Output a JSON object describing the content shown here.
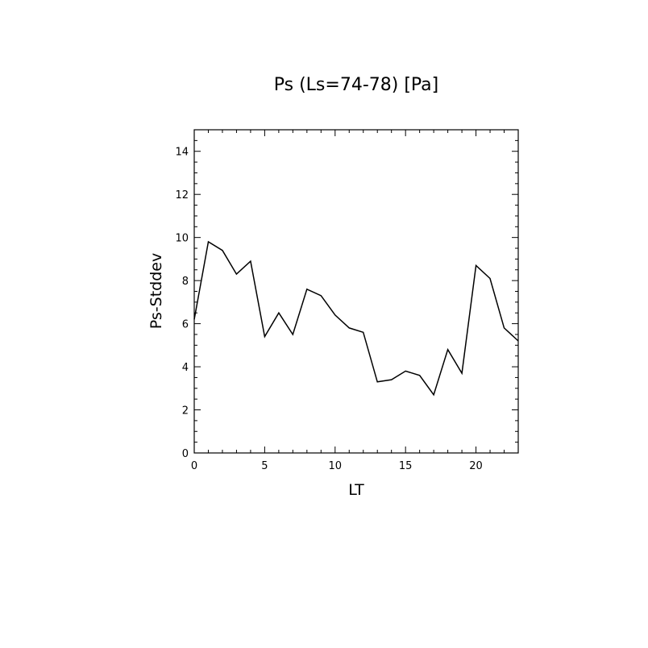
{
  "chart_data": {
    "type": "line",
    "title": "Ps (Ls=74-78) [Pa]",
    "xlabel": "LT",
    "ylabel": "Ps-Stddev",
    "xlim": [
      0,
      23
    ],
    "ylim": [
      0,
      15
    ],
    "x_ticks": [
      0,
      5,
      10,
      15,
      20
    ],
    "y_ticks": [
      0,
      2,
      4,
      6,
      8,
      10,
      12,
      14
    ],
    "grid": false,
    "series": [
      {
        "x": [
          0,
          1,
          2,
          3,
          4,
          5,
          6,
          7,
          8,
          9,
          10,
          11,
          12,
          13,
          14,
          15,
          16,
          17,
          18,
          19,
          20,
          21,
          22,
          23
        ],
        "values": [
          6.2,
          9.8,
          9.4,
          8.3,
          8.9,
          5.4,
          6.5,
          5.5,
          7.6,
          7.3,
          6.4,
          5.8,
          5.6,
          3.3,
          3.4,
          3.8,
          3.6,
          2.7,
          4.8,
          3.7,
          8.7,
          8.1,
          5.8,
          5.2
        ],
        "color": "#000000"
      }
    ]
  }
}
